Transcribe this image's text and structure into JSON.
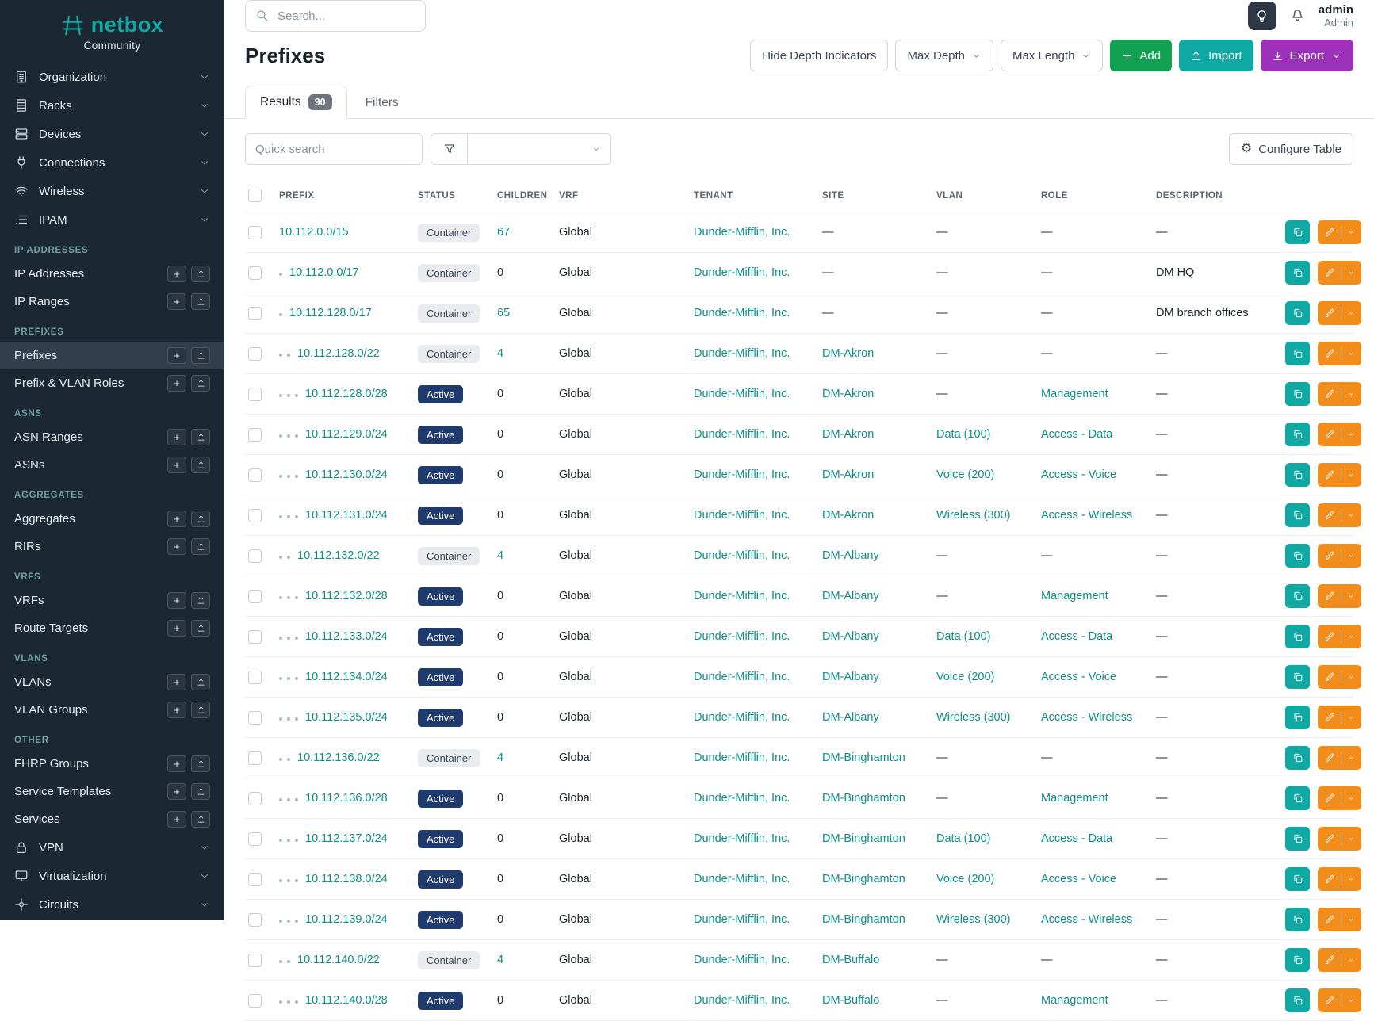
{
  "brand": {
    "name": "netbox",
    "subtitle": "Community"
  },
  "topbar": {
    "search_placeholder": "Search...",
    "user_name": "admin",
    "user_role": "Admin"
  },
  "colors": {
    "brand_teal": "#0fa9a4",
    "link": "#0d8f87",
    "status_active": "#1f3a6d",
    "add_green": "#12a150",
    "import_teal": "#0fa8a3",
    "export_purple": "#9c30b8",
    "edit_orange": "#f28c1b",
    "sidebar_bg": "#1c2734"
  },
  "icons": {
    "topbar": [
      "search-icon",
      "lightbulb-icon",
      "bell-icon"
    ],
    "toolbar": [
      "plus-icon",
      "upload-icon",
      "download-icon",
      "caret-down-icon",
      "gear-icon",
      "funnel-icon"
    ],
    "row_actions": [
      "copy-icon",
      "edit-pencil-icon",
      "caret-down-icon"
    ]
  },
  "sidebar": {
    "top_items": [
      {
        "label": "Organization",
        "icon": "building-icon"
      },
      {
        "label": "Racks",
        "icon": "rack-icon"
      },
      {
        "label": "Devices",
        "icon": "server-icon"
      },
      {
        "label": "Connections",
        "icon": "plug-icon"
      },
      {
        "label": "Wireless",
        "icon": "wifi-icon"
      },
      {
        "label": "IPAM",
        "icon": "list-icon"
      }
    ],
    "groups": [
      {
        "header": "IP ADDRESSES",
        "items": [
          {
            "label": "IP Addresses"
          },
          {
            "label": "IP Ranges"
          }
        ]
      },
      {
        "header": "PREFIXES",
        "items": [
          {
            "label": "Prefixes",
            "active": true,
            "actions": [
              "add",
              "import"
            ]
          },
          {
            "label": "Prefix & VLAN Roles"
          }
        ]
      },
      {
        "header": "ASNS",
        "items": [
          {
            "label": "ASN Ranges"
          },
          {
            "label": "ASNs"
          }
        ]
      },
      {
        "header": "AGGREGATES",
        "items": [
          {
            "label": "Aggregates"
          },
          {
            "label": "RIRs"
          }
        ]
      },
      {
        "header": "VRFS",
        "items": [
          {
            "label": "VRFs"
          },
          {
            "label": "Route Targets"
          }
        ]
      },
      {
        "header": "VLANS",
        "items": [
          {
            "label": "VLANs"
          },
          {
            "label": "VLAN Groups"
          }
        ]
      },
      {
        "header": "OTHER",
        "items": [
          {
            "label": "FHRP Groups"
          },
          {
            "label": "Service Templates"
          },
          {
            "label": "Services"
          }
        ]
      }
    ],
    "bottom_items": [
      {
        "label": "VPN",
        "icon": "lock-icon"
      },
      {
        "label": "Virtualization",
        "icon": "monitor-icon"
      },
      {
        "label": "Circuits",
        "icon": "circuit-icon"
      }
    ]
  },
  "page": {
    "title": "Prefixes",
    "toolbar": {
      "hide_depth": "Hide Depth Indicators",
      "max_depth": "Max Depth",
      "max_length": "Max Length",
      "add": "Add",
      "import": "Import",
      "export": "Export"
    },
    "tabs": [
      {
        "label": "Results",
        "badge": "90",
        "active": true
      },
      {
        "label": "Filters"
      }
    ],
    "controls": {
      "quick_search_placeholder": "Quick search",
      "configure_table": "Configure Table"
    },
    "table": {
      "columns": [
        "PREFIX",
        "STATUS",
        "CHILDREN",
        "VRF",
        "TENANT",
        "SITE",
        "VLAN",
        "ROLE",
        "DESCRIPTION"
      ],
      "rows": [
        {
          "depth": 0,
          "prefix": "10.112.0.0/15",
          "status": "Container",
          "children": "67",
          "vrf": "Global",
          "tenant": "Dunder-Mifflin, Inc.",
          "site": "—",
          "vlan": "—",
          "role": "—",
          "description": "—"
        },
        {
          "depth": 1,
          "prefix": "10.112.0.0/17",
          "status": "Container",
          "children": "0",
          "vrf": "Global",
          "tenant": "Dunder-Mifflin, Inc.",
          "site": "—",
          "vlan": "—",
          "role": "—",
          "description": "DM HQ"
        },
        {
          "depth": 1,
          "prefix": "10.112.128.0/17",
          "status": "Container",
          "children": "65",
          "vrf": "Global",
          "tenant": "Dunder-Mifflin, Inc.",
          "site": "—",
          "vlan": "—",
          "role": "—",
          "description": "DM branch offices"
        },
        {
          "depth": 2,
          "prefix": "10.112.128.0/22",
          "status": "Container",
          "children": "4",
          "vrf": "Global",
          "tenant": "Dunder-Mifflin, Inc.",
          "site": "DM-Akron",
          "vlan": "—",
          "role": "—",
          "description": "—"
        },
        {
          "depth": 3,
          "prefix": "10.112.128.0/28",
          "status": "Active",
          "children": "0",
          "vrf": "Global",
          "tenant": "Dunder-Mifflin, Inc.",
          "site": "DM-Akron",
          "vlan": "—",
          "role": "Management",
          "description": "—"
        },
        {
          "depth": 3,
          "prefix": "10.112.129.0/24",
          "status": "Active",
          "children": "0",
          "vrf": "Global",
          "tenant": "Dunder-Mifflin, Inc.",
          "site": "DM-Akron",
          "vlan": "Data (100)",
          "role": "Access - Data",
          "description": "—"
        },
        {
          "depth": 3,
          "prefix": "10.112.130.0/24",
          "status": "Active",
          "children": "0",
          "vrf": "Global",
          "tenant": "Dunder-Mifflin, Inc.",
          "site": "DM-Akron",
          "vlan": "Voice (200)",
          "role": "Access - Voice",
          "description": "—"
        },
        {
          "depth": 3,
          "prefix": "10.112.131.0/24",
          "status": "Active",
          "children": "0",
          "vrf": "Global",
          "tenant": "Dunder-Mifflin, Inc.",
          "site": "DM-Akron",
          "vlan": "Wireless (300)",
          "role": "Access - Wireless",
          "description": "—"
        },
        {
          "depth": 2,
          "prefix": "10.112.132.0/22",
          "status": "Container",
          "children": "4",
          "vrf": "Global",
          "tenant": "Dunder-Mifflin, Inc.",
          "site": "DM-Albany",
          "vlan": "—",
          "role": "—",
          "description": "—"
        },
        {
          "depth": 3,
          "prefix": "10.112.132.0/28",
          "status": "Active",
          "children": "0",
          "vrf": "Global",
          "tenant": "Dunder-Mifflin, Inc.",
          "site": "DM-Albany",
          "vlan": "—",
          "role": "Management",
          "description": "—"
        },
        {
          "depth": 3,
          "prefix": "10.112.133.0/24",
          "status": "Active",
          "children": "0",
          "vrf": "Global",
          "tenant": "Dunder-Mifflin, Inc.",
          "site": "DM-Albany",
          "vlan": "Data (100)",
          "role": "Access - Data",
          "description": "—"
        },
        {
          "depth": 3,
          "prefix": "10.112.134.0/24",
          "status": "Active",
          "children": "0",
          "vrf": "Global",
          "tenant": "Dunder-Mifflin, Inc.",
          "site": "DM-Albany",
          "vlan": "Voice (200)",
          "role": "Access - Voice",
          "description": "—"
        },
        {
          "depth": 3,
          "prefix": "10.112.135.0/24",
          "status": "Active",
          "children": "0",
          "vrf": "Global",
          "tenant": "Dunder-Mifflin, Inc.",
          "site": "DM-Albany",
          "vlan": "Wireless (300)",
          "role": "Access - Wireless",
          "description": "—"
        },
        {
          "depth": 2,
          "prefix": "10.112.136.0/22",
          "status": "Container",
          "children": "4",
          "vrf": "Global",
          "tenant": "Dunder-Mifflin, Inc.",
          "site": "DM-Binghamton",
          "vlan": "—",
          "role": "—",
          "description": "—"
        },
        {
          "depth": 3,
          "prefix": "10.112.136.0/28",
          "status": "Active",
          "children": "0",
          "vrf": "Global",
          "tenant": "Dunder-Mifflin, Inc.",
          "site": "DM-Binghamton",
          "vlan": "—",
          "role": "Management",
          "description": "—"
        },
        {
          "depth": 3,
          "prefix": "10.112.137.0/24",
          "status": "Active",
          "children": "0",
          "vrf": "Global",
          "tenant": "Dunder-Mifflin, Inc.",
          "site": "DM-Binghamton",
          "vlan": "Data (100)",
          "role": "Access - Data",
          "description": "—"
        },
        {
          "depth": 3,
          "prefix": "10.112.138.0/24",
          "status": "Active",
          "children": "0",
          "vrf": "Global",
          "tenant": "Dunder-Mifflin, Inc.",
          "site": "DM-Binghamton",
          "vlan": "Voice (200)",
          "role": "Access - Voice",
          "description": "—"
        },
        {
          "depth": 3,
          "prefix": "10.112.139.0/24",
          "status": "Active",
          "children": "0",
          "vrf": "Global",
          "tenant": "Dunder-Mifflin, Inc.",
          "site": "DM-Binghamton",
          "vlan": "Wireless (300)",
          "role": "Access - Wireless",
          "description": "—"
        },
        {
          "depth": 2,
          "prefix": "10.112.140.0/22",
          "status": "Container",
          "children": "4",
          "vrf": "Global",
          "tenant": "Dunder-Mifflin, Inc.",
          "site": "DM-Buffalo",
          "vlan": "—",
          "role": "—",
          "description": "—"
        },
        {
          "depth": 3,
          "prefix": "10.112.140.0/28",
          "status": "Active",
          "children": "0",
          "vrf": "Global",
          "tenant": "Dunder-Mifflin, Inc.",
          "site": "DM-Buffalo",
          "vlan": "—",
          "role": "Management",
          "description": "—"
        }
      ]
    }
  }
}
